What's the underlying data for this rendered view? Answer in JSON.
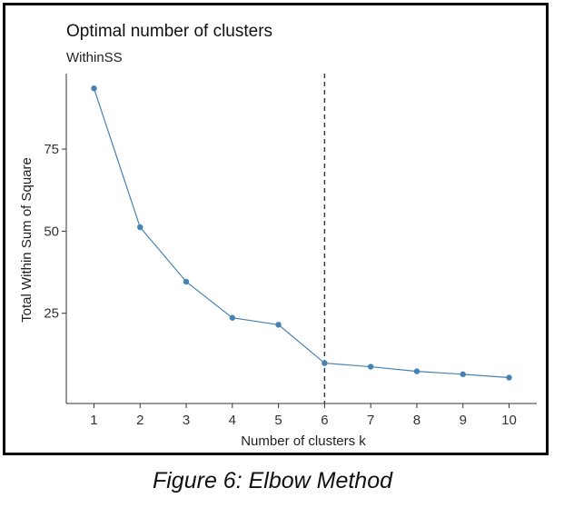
{
  "caption": "Figure 6: Elbow Method",
  "chart_data": {
    "type": "line",
    "title": "Optimal number of clusters",
    "subtitle": "WithinSS",
    "xlabel": "Number of clusters k",
    "ylabel": "Total Within Sum of Square",
    "x": [
      1,
      2,
      3,
      4,
      5,
      6,
      7,
      8,
      9,
      10
    ],
    "series": [
      {
        "values": [
          93.5,
          51.2,
          34.6,
          23.6,
          21.5,
          9.8,
          8.7,
          7.3,
          6.4,
          5.4
        ]
      }
    ],
    "xticks": [
      "1",
      "2",
      "3",
      "4",
      "5",
      "6",
      "7",
      "8",
      "9",
      "10"
    ],
    "yticks": [
      25,
      50,
      75
    ],
    "ylim": [
      -2.5,
      98
    ],
    "xlim": [
      0.4,
      10.6
    ],
    "vline": {
      "x": 6,
      "style": "dashed"
    },
    "grid": false,
    "colors": {
      "line": "#4682b4",
      "point": "#4682b4",
      "vline": "#333333",
      "axis": "#333333"
    }
  }
}
